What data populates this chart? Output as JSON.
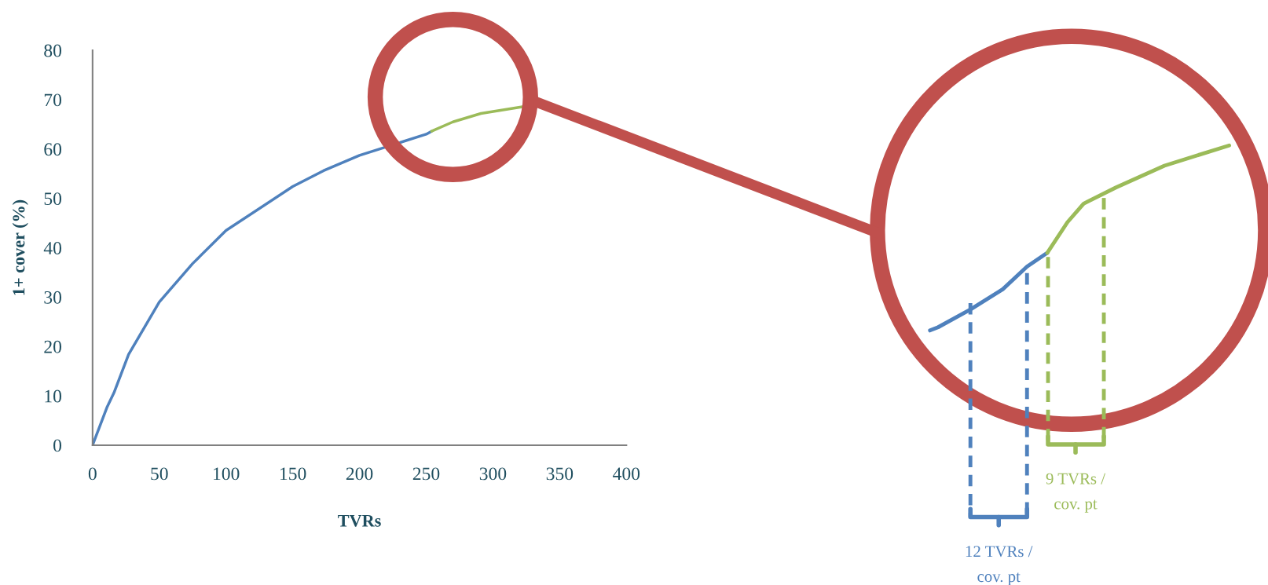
{
  "chart_data": {
    "type": "line",
    "xlabel": "TVRs",
    "ylabel": "1+ cover (%)",
    "xlim": [
      0,
      400
    ],
    "xticks": [
      0,
      50,
      100,
      150,
      200,
      250,
      300,
      350,
      400
    ],
    "ylim": [
      0,
      80
    ],
    "yticks": [
      0,
      10,
      20,
      30,
      40,
      50,
      60,
      70,
      80
    ],
    "grid": false,
    "legend": false,
    "marker": "none",
    "line_style": "solid",
    "series": [
      {
        "color": "#4f81bd",
        "x": [
          0,
          11,
          16,
          27,
          50,
          75,
          100,
          150,
          173,
          200,
          250,
          254
        ],
        "values": [
          0,
          7.8,
          10.6,
          18.4,
          29,
          36.8,
          43.5,
          52.4,
          55.6,
          58.7,
          63,
          63.6
        ]
      },
      {
        "color": "#9bbb59",
        "x": [
          254,
          270,
          291,
          323
        ],
        "values": [
          63.6,
          65.5,
          67.2,
          68.6
        ]
      }
    ],
    "annotations": [
      "12 TVRs / cov. pt",
      "9 TVRs / cov. pt"
    ]
  }
}
